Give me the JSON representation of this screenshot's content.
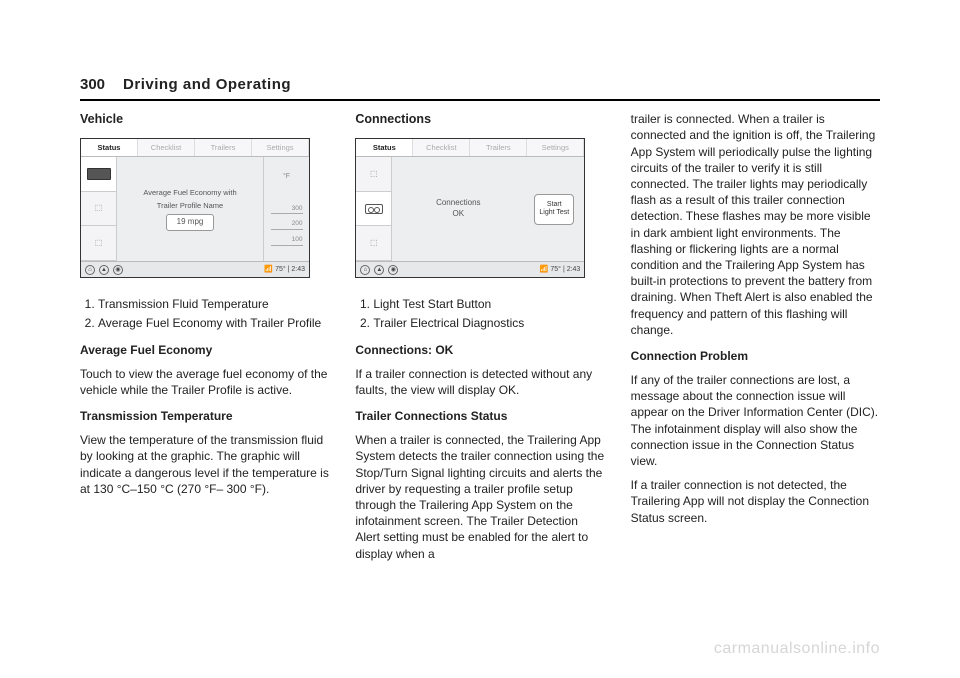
{
  "header": {
    "page_number": "300",
    "section": "Driving and Operating"
  },
  "col1": {
    "title": "Vehicle",
    "list": [
      "Transmission Fluid Temperature",
      "Average Fuel Economy with Trailer Profile"
    ],
    "h_afe": "Average Fuel Economy",
    "p_afe": "Touch to view the average fuel economy of the vehicle while the Trailer Profile is active.",
    "h_tt": "Transmission Temperature",
    "p_tt": "View the temperature of the transmission fluid by looking at the graphic. The graphic will indicate a dangerous level if the temperature is at 130 °C–150 °C (270 °F– 300 °F)."
  },
  "col2": {
    "title": "Connections",
    "list": [
      "Light Test Start Button",
      "Trailer Electrical Diagnostics"
    ],
    "h_cok": "Connections: OK",
    "p_cok": "If a trailer connection is detected without any faults, the view will display OK.",
    "h_tcs": "Trailer Connections Status",
    "p_tcs": "When a trailer is connected, the Trailering App System detects the trailer connection using the Stop/Turn Signal lighting circuits and alerts the driver by requesting a trailer profile setup through the Trailering App System on the infotainment screen. The Trailer Detection Alert setting must be enabled for the alert to display when a"
  },
  "col3": {
    "p_cont": "trailer is connected. When a trailer is connected and the ignition is off, the Trailering App System will periodically pulse the lighting circuits of the trailer to verify it is still connected. The trailer lights may periodically flash as a result of this trailer connection detection. These flashes may be more visible in dark ambient light environments. The flashing or flickering lights are a normal condition and the Trailering App System has built-in protections to prevent the battery from draining. When Theft Alert is also enabled the frequency and pattern of this flashing will change.",
    "h_cp": "Connection Problem",
    "p_cp1": "If any of the trailer connections are lost, a message about the connection issue will appear on the Driver Information Center (DIC). The infotainment display will also show the connection issue in the Connection Status view.",
    "p_cp2": "If a trailer connection is not detected, the Trailering App will not display the Connection Status screen."
  },
  "screen1": {
    "tabs": [
      "Status",
      "Checklist",
      "Trailers",
      "Settings"
    ],
    "center_line1": "Average Fuel Economy with",
    "center_line2": "Trailer Profile Name",
    "mpg": "19 mpg",
    "gauge_unit": "°F",
    "gauge_marks": [
      "300",
      "200",
      "100"
    ],
    "bottom_temp": "75°",
    "bottom_time": "2:43"
  },
  "screen2": {
    "tabs": [
      "Status",
      "Checklist",
      "Trailers",
      "Settings"
    ],
    "center_line1": "Connections",
    "center_line2": "OK",
    "light_btn_l1": "Start",
    "light_btn_l2": "Light Test",
    "bottom_temp": "75°",
    "bottom_time": "2:43"
  },
  "watermark": "carmanualsonline.info"
}
